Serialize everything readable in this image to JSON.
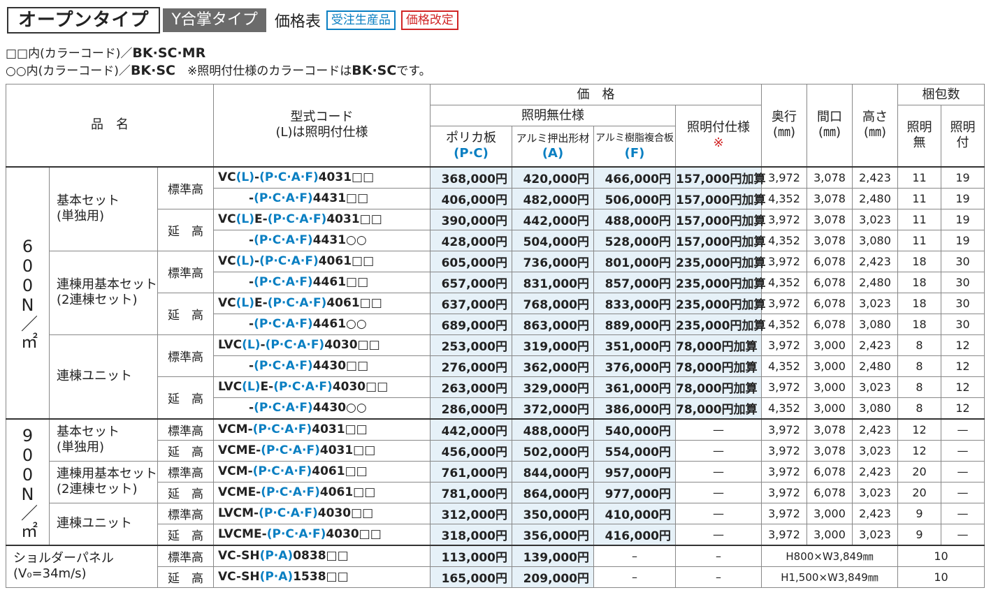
{
  "header": {
    "title_main": "オープンタイプ",
    "title_sub": "Y合掌タイプ",
    "price_label": "価格表",
    "badge_made_to_order": "受注生産品",
    "badge_price_revised": "価格改定"
  },
  "notes": {
    "line1_prefix": "□□内(カラーコード)／",
    "line1_codes": "BK·SC·MR",
    "line2_prefix": "○○内(カラーコード)／",
    "line2_codes": "BK·SC",
    "line2_note": "※照明付仕様のカラーコードは",
    "line2_note_codes": "BK·SC",
    "line2_note_end": "です。"
  },
  "table_header": {
    "product_name": "品　名",
    "model_code": "型式コード",
    "model_code_sub": "(L)は照明付仕様",
    "price": "価　格",
    "no_light_spec": "照明無仕様",
    "poly": "ポリカ板",
    "poly_code": "(P·C)",
    "alu_ext": "アルミ押出形材",
    "alu_ext_code": "(A)",
    "alu_comp": "アルミ樹脂複合板",
    "alu_comp_code": "(F)",
    "light_spec": "照明付仕様",
    "light_mark": "※",
    "depth": "奥行\n(㎜)",
    "width": "間口\n(㎜)",
    "height": "高さ\n(㎜)",
    "packing": "梱包数",
    "pack_no_light": "照明\n無",
    "pack_light": "照明\n付"
  },
  "load_groups": {
    "g600": "600N／㎡",
    "g900": "900N／㎡"
  },
  "rows_600": [
    {
      "group": "基本セット\n(単独用)",
      "height_type": "標準高",
      "code": "VC(L)-(P·C·A·F)4031□□",
      "poly": "368,000円",
      "alu_ext": "420,000円",
      "alu_comp": "466,000円",
      "light": "157,000円加算",
      "depth": "3,972",
      "width": "3,078",
      "height": "2,423",
      "pack_no": "11",
      "pack_yes": "19"
    },
    {
      "code": "-(P·C·A·F)4431□□",
      "poly": "406,000円",
      "alu_ext": "482,000円",
      "alu_comp": "506,000円",
      "light": "157,000円加算",
      "depth": "4,352",
      "width": "3,078",
      "height": "2,480",
      "pack_no": "11",
      "pack_yes": "19"
    },
    {
      "height_type": "延　高",
      "code": "VC(L)E-(P·C·A·F)4031□□",
      "poly": "390,000円",
      "alu_ext": "442,000円",
      "alu_comp": "488,000円",
      "light": "157,000円加算",
      "depth": "3,972",
      "width": "3,078",
      "height": "3,023",
      "pack_no": "11",
      "pack_yes": "19"
    },
    {
      "code": "-(P·C·A·F)4431○○",
      "poly": "428,000円",
      "alu_ext": "504,000円",
      "alu_comp": "528,000円",
      "light": "157,000円加算",
      "depth": "4,352",
      "width": "3,078",
      "height": "3,080",
      "pack_no": "11",
      "pack_yes": "19"
    },
    {
      "group": "連棟用基本セット\n(2連棟セット)",
      "height_type": "標準高",
      "code": "VC(L)-(P·C·A·F)4061□□",
      "poly": "605,000円",
      "alu_ext": "736,000円",
      "alu_comp": "801,000円",
      "light": "235,000円加算",
      "depth": "3,972",
      "width": "6,078",
      "height": "2,423",
      "pack_no": "18",
      "pack_yes": "30"
    },
    {
      "code": "-(P·C·A·F)4461□□",
      "poly": "657,000円",
      "alu_ext": "831,000円",
      "alu_comp": "857,000円",
      "light": "235,000円加算",
      "depth": "4,352",
      "width": "6,078",
      "height": "2,480",
      "pack_no": "18",
      "pack_yes": "30"
    },
    {
      "height_type": "延　高",
      "code": "VC(L)E-(P·C·A·F)4061□□",
      "poly": "637,000円",
      "alu_ext": "768,000円",
      "alu_comp": "833,000円",
      "light": "235,000円加算",
      "depth": "3,972",
      "width": "6,078",
      "height": "3,023",
      "pack_no": "18",
      "pack_yes": "30"
    },
    {
      "code": "-(P·C·A·F)4461○○",
      "poly": "689,000円",
      "alu_ext": "863,000円",
      "alu_comp": "889,000円",
      "light": "235,000円加算",
      "depth": "4,352",
      "width": "6,078",
      "height": "3,080",
      "pack_no": "18",
      "pack_yes": "30"
    },
    {
      "group": "連棟ユニット",
      "height_type": "標準高",
      "code": "LVC(L)-(P·C·A·F)4030□□",
      "poly": "253,000円",
      "alu_ext": "319,000円",
      "alu_comp": "351,000円",
      "light": "78,000円加算",
      "depth": "3,972",
      "width": "3,000",
      "height": "2,423",
      "pack_no": "8",
      "pack_yes": "12"
    },
    {
      "code": "-(P·C·A·F)4430□□",
      "poly": "276,000円",
      "alu_ext": "362,000円",
      "alu_comp": "376,000円",
      "light": "78,000円加算",
      "depth": "4,352",
      "width": "3,000",
      "height": "2,480",
      "pack_no": "8",
      "pack_yes": "12"
    },
    {
      "height_type": "延　高",
      "code": "LVC(L)E-(P·C·A·F)4030□□",
      "poly": "263,000円",
      "alu_ext": "329,000円",
      "alu_comp": "361,000円",
      "light": "78,000円加算",
      "depth": "3,972",
      "width": "3,000",
      "height": "3,023",
      "pack_no": "8",
      "pack_yes": "12"
    },
    {
      "code": "-(P·C·A·F)4430○○",
      "poly": "286,000円",
      "alu_ext": "372,000円",
      "alu_comp": "386,000円",
      "light": "78,000円加算",
      "depth": "4,352",
      "width": "3,000",
      "height": "3,080",
      "pack_no": "8",
      "pack_yes": "12"
    }
  ],
  "rows_900": [
    {
      "group": "基本セット\n(単独用)",
      "height_type": "標準高",
      "code": "VCM-(P·C·A·F)4031□□",
      "poly": "442,000円",
      "alu_ext": "488,000円",
      "alu_comp": "540,000円",
      "light": "—",
      "depth": "3,972",
      "width": "3,078",
      "height": "2,423",
      "pack_no": "12",
      "pack_yes": "—"
    },
    {
      "height_type": "延　高",
      "code": "VCME-(P·C·A·F)4031□□",
      "poly": "456,000円",
      "alu_ext": "502,000円",
      "alu_comp": "554,000円",
      "light": "—",
      "depth": "3,972",
      "width": "3,078",
      "height": "3,023",
      "pack_no": "12",
      "pack_yes": "—"
    },
    {
      "group": "連棟用基本セット\n(2連棟セット)",
      "height_type": "標準高",
      "code": "VCM-(P·C·A·F)4061□□",
      "poly": "761,000円",
      "alu_ext": "844,000円",
      "alu_comp": "957,000円",
      "light": "—",
      "depth": "3,972",
      "width": "6,078",
      "height": "2,423",
      "pack_no": "20",
      "pack_yes": "—"
    },
    {
      "height_type": "延　高",
      "code": "VCME-(P·C·A·F)4061□□",
      "poly": "781,000円",
      "alu_ext": "864,000円",
      "alu_comp": "977,000円",
      "light": "—",
      "depth": "3,972",
      "width": "6,078",
      "height": "3,023",
      "pack_no": "20",
      "pack_yes": "—"
    },
    {
      "group": "連棟ユニット",
      "height_type": "標準高",
      "code": "LVCM-(P·C·A·F)4030□□",
      "poly": "312,000円",
      "alu_ext": "350,000円",
      "alu_comp": "410,000円",
      "light": "—",
      "depth": "3,972",
      "width": "3,000",
      "height": "2,423",
      "pack_no": "9",
      "pack_yes": "—"
    },
    {
      "height_type": "延　高",
      "code": "LVCME-(P·C·A·F)4030□□",
      "poly": "318,000円",
      "alu_ext": "356,000円",
      "alu_comp": "416,000円",
      "light": "—",
      "depth": "3,972",
      "width": "3,000",
      "height": "3,023",
      "pack_no": "9",
      "pack_yes": "—"
    }
  ],
  "rows_shoulder": {
    "group": "ショルダーパネル\n(V₀=34m/s)",
    "rows": [
      {
        "height_type": "標準高",
        "code": "VC-SH(P·A)0838□□",
        "poly": "113,000円",
        "alu_ext": "139,000円",
        "alu_comp": "–",
        "light": "–",
        "size": "H800×W3,849㎜",
        "pack": "10"
      },
      {
        "height_type": "延　高",
        "code": "VC-SH(P·A)1538□□",
        "poly": "165,000円",
        "alu_ext": "209,000円",
        "alu_comp": "–",
        "light": "–",
        "size": "H1,500×W3,849㎜",
        "pack": "10"
      }
    ]
  }
}
